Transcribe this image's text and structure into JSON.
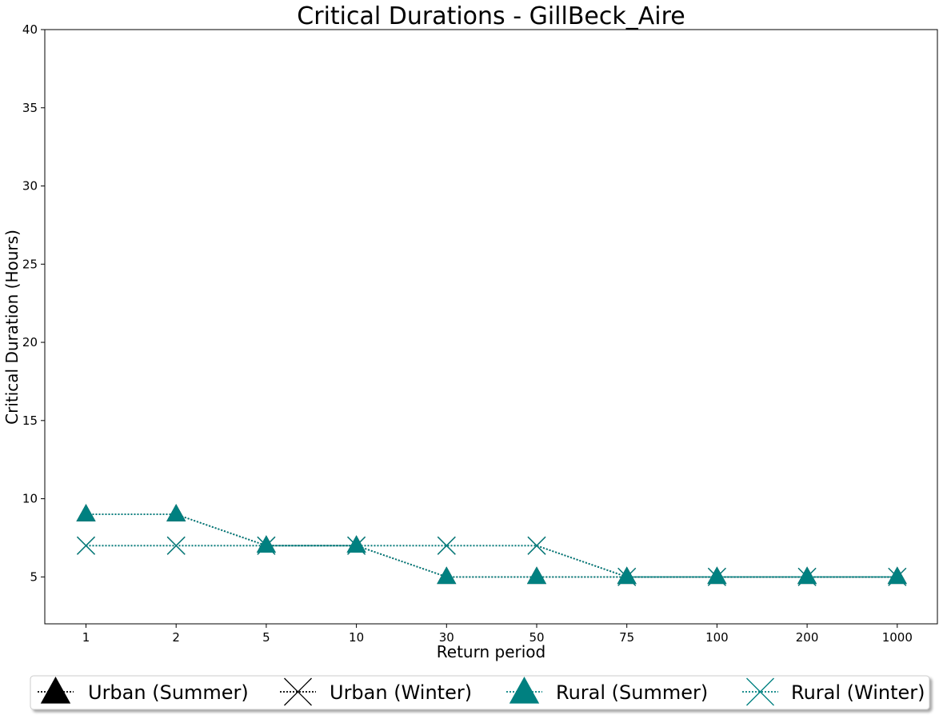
{
  "chart_data": {
    "type": "line",
    "title": "Critical Durations - GillBeck_Aire",
    "xlabel": "Return period",
    "ylabel": "Critical Duration (Hours)",
    "categories": [
      "1",
      "2",
      "5",
      "10",
      "30",
      "50",
      "75",
      "100",
      "200",
      "1000"
    ],
    "ylim": [
      2,
      40
    ],
    "yticks": [
      5,
      10,
      15,
      20,
      25,
      30,
      35,
      40
    ],
    "grid": false,
    "legend_position": "bottom",
    "series": [
      {
        "name": "Urban (Summer)",
        "marker": "triangle",
        "color": "#000000",
        "line_color": "#000000",
        "values": [
          9,
          9,
          7,
          7,
          5,
          5,
          5,
          5,
          5,
          5
        ]
      },
      {
        "name": "Urban (Winter)",
        "marker": "x",
        "color": "#000000",
        "line_color": "#000000",
        "values": [
          7,
          7,
          7,
          7,
          7,
          7,
          5,
          5,
          5,
          5
        ]
      },
      {
        "name": "Rural (Summer)",
        "marker": "triangle",
        "color": "#008080",
        "line_color": "#008080",
        "values": [
          9,
          9,
          7,
          7,
          5,
          5,
          5,
          5,
          5,
          5
        ]
      },
      {
        "name": "Rural (Winter)",
        "marker": "x",
        "color": "#008080",
        "line_color": "#008080",
        "values": [
          7,
          7,
          7,
          7,
          7,
          7,
          5,
          5,
          5,
          5
        ]
      }
    ]
  }
}
